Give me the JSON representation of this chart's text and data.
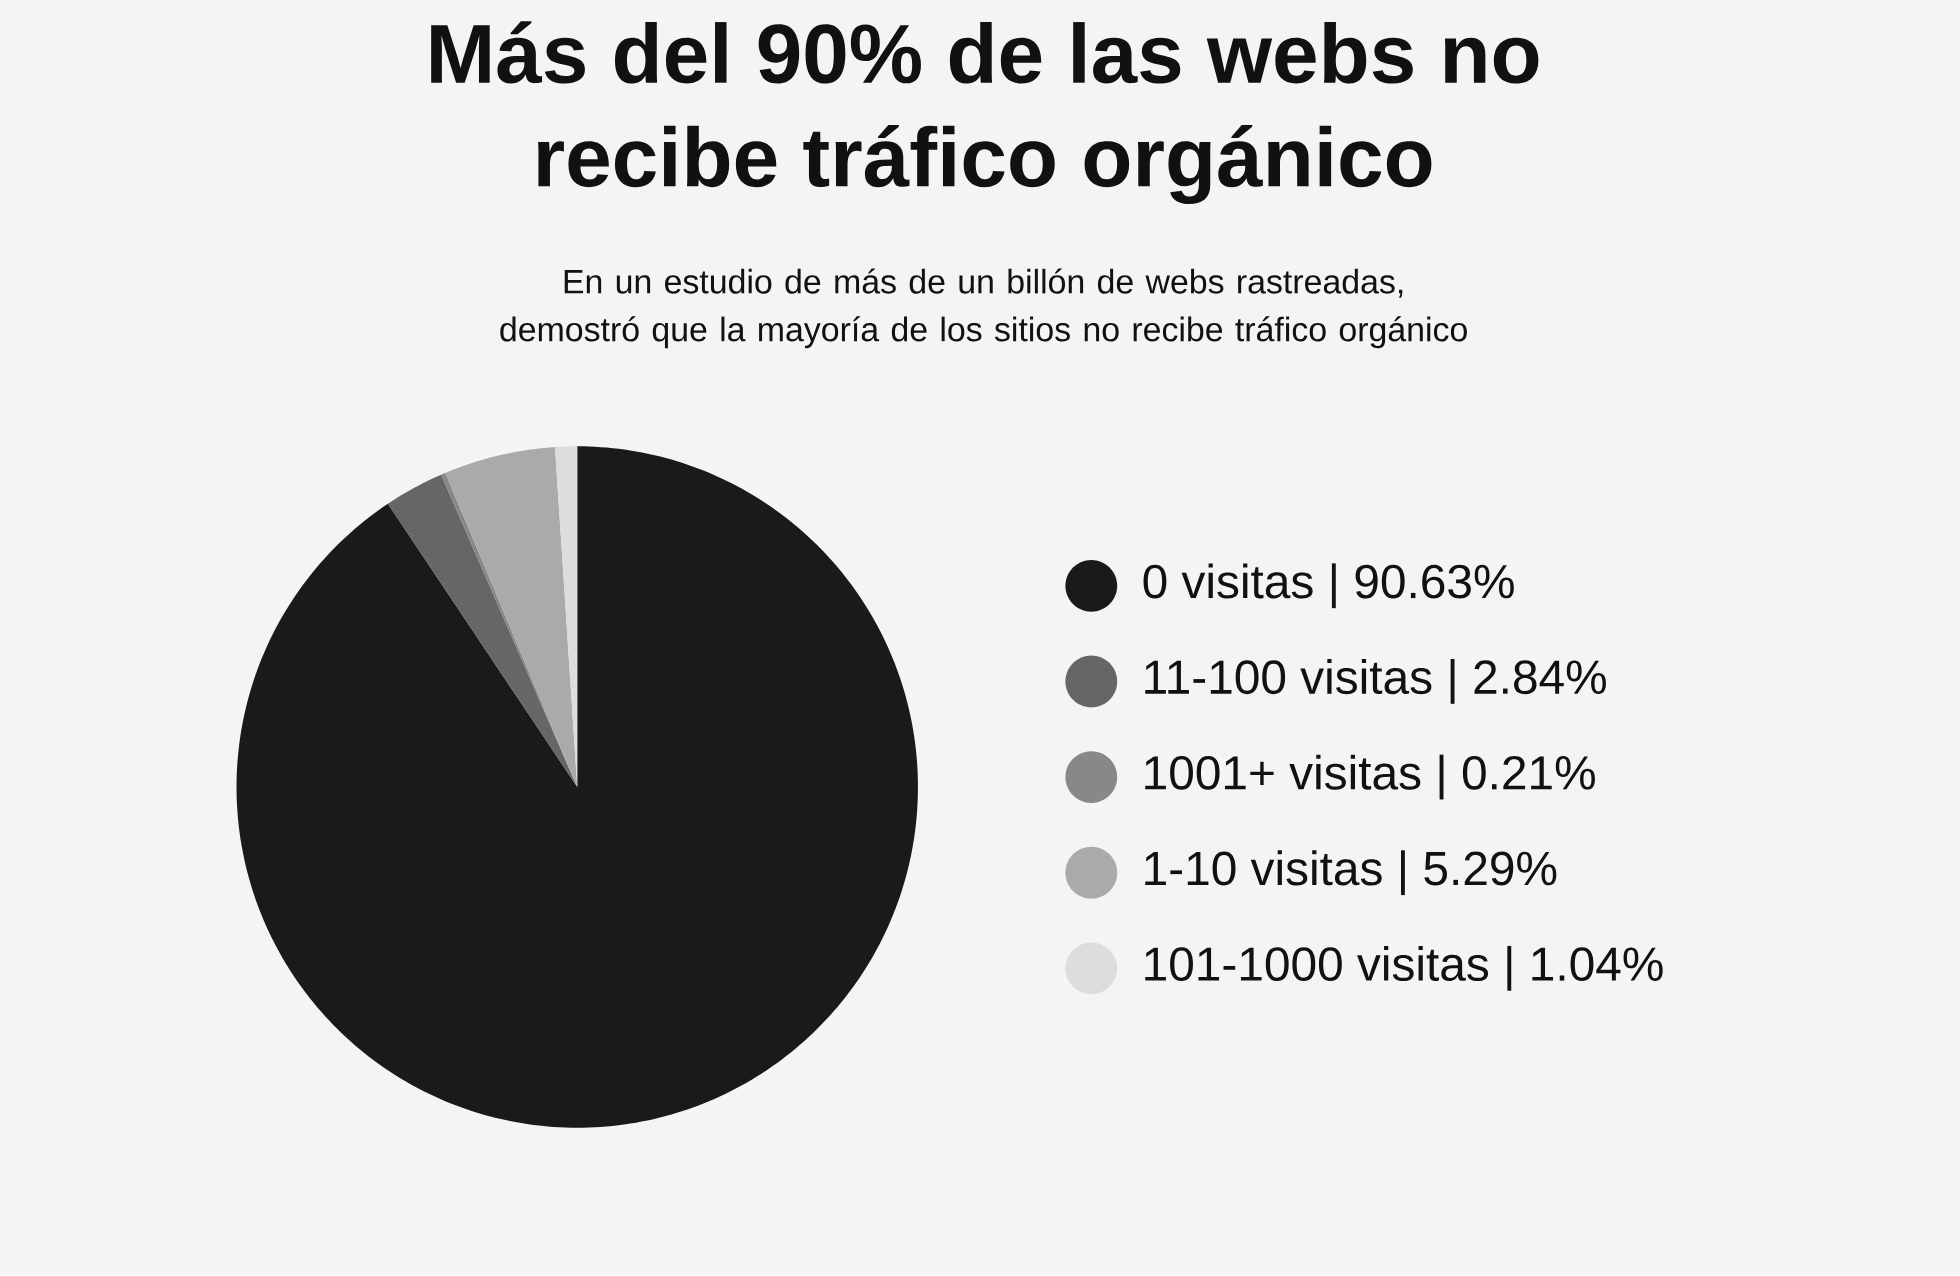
{
  "chart_data": {
    "type": "pie",
    "title": "Más del 90% de las webs no recibe tráfico orgánico",
    "subtitle": "En un estudio de más de un billón de webs rastreadas, demostró que la mayoría de los sitios no recibe tráfico orgánico",
    "categories": [
      "0 visitas | 90.63%",
      "11-100 visitas | 2.84%",
      "1001+ visitas | 0.21%",
      "1-10 visitas | 5.29%",
      "101-1000 visitas | 1.04%"
    ],
    "values": [
      90.63,
      2.84,
      0.21,
      5.29,
      1.04
    ],
    "colors": [
      "#1a1a1a",
      "#666666",
      "#888888",
      "#aaaaaa",
      "#dddddd"
    ],
    "legend": "right"
  }
}
